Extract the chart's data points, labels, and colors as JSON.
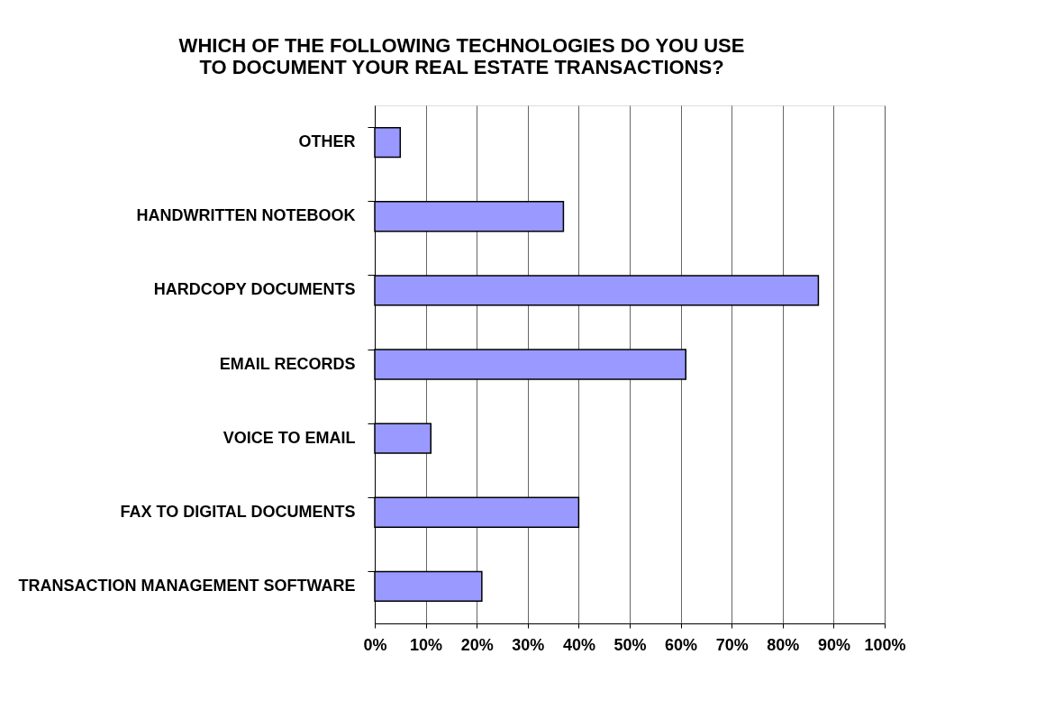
{
  "chart_data": {
    "type": "bar",
    "orientation": "horizontal",
    "title": [
      "WHICH OF THE FOLLOWING TECHNOLOGIES DO YOU USE",
      "TO DOCUMENT YOUR REAL ESTATE TRANSACTIONS?"
    ],
    "categories": [
      "OTHER",
      "HANDWRITTEN NOTEBOOK",
      "HARDCOPY DOCUMENTS",
      "EMAIL RECORDS",
      "VOICE TO EMAIL",
      "FAX TO DIGITAL DOCUMENTS",
      "TRANSACTION MANAGEMENT SOFTWARE"
    ],
    "values": [
      5,
      37,
      87,
      61,
      11,
      40,
      21
    ],
    "color": "#9999ff",
    "xlim": [
      0,
      100
    ],
    "xticks": [
      {
        "value": 0,
        "label": "0%"
      },
      {
        "value": 10,
        "label": "10%"
      },
      {
        "value": 20,
        "label": "20%"
      },
      {
        "value": 30,
        "label": "30%"
      },
      {
        "value": 40,
        "label": "40%"
      },
      {
        "value": 50,
        "label": "50%"
      },
      {
        "value": 60,
        "label": "60%"
      },
      {
        "value": 70,
        "label": "70%"
      },
      {
        "value": 80,
        "label": "80%"
      },
      {
        "value": 90,
        "label": "90%"
      },
      {
        "value": 100,
        "label": "100%"
      }
    ],
    "grid": "x"
  }
}
